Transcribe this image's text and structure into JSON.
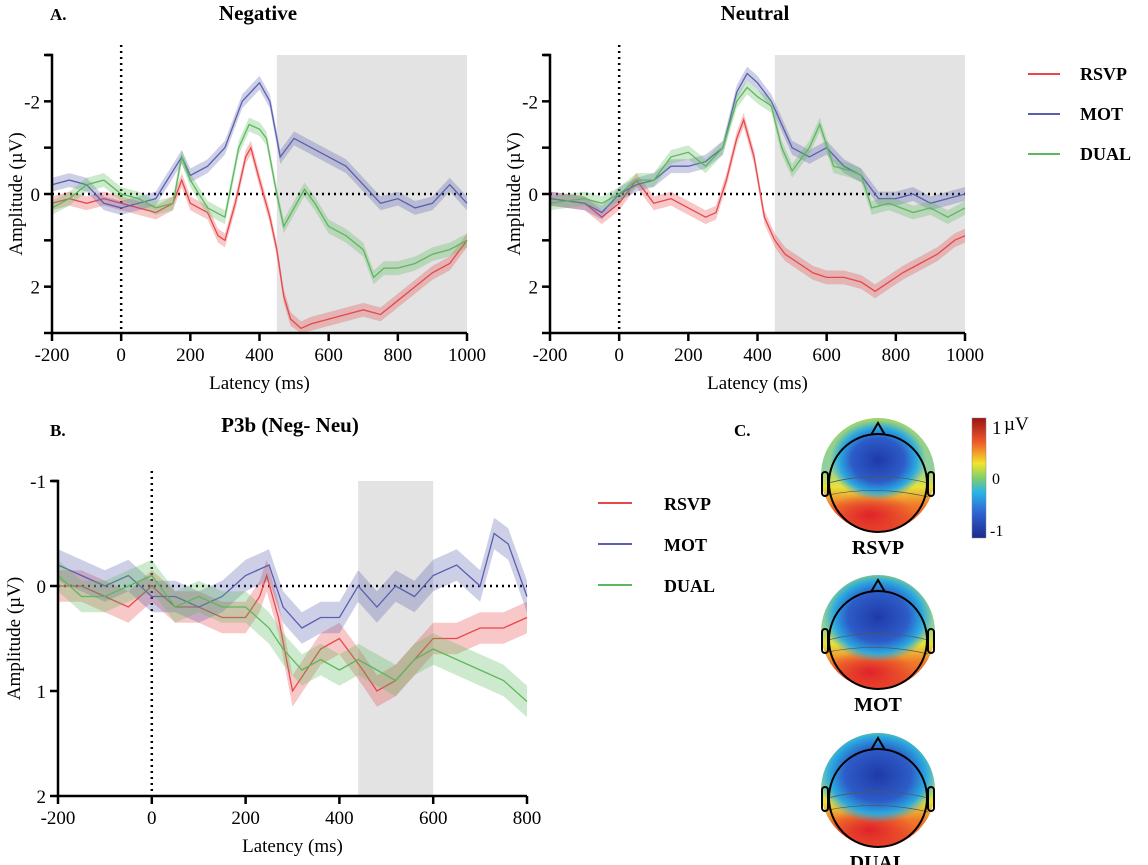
{
  "colors": {
    "RSVP": "#e8474a",
    "MOT": "#5a5fb0",
    "DUAL": "#5cb85c",
    "shade": "#e3e3e3"
  },
  "panel_labels": {
    "A": "A.",
    "B": "B.",
    "C": "C."
  },
  "legend": [
    "RSVP",
    "MOT",
    "DUAL"
  ],
  "chart_data": [
    {
      "type": "line",
      "title": "Negative",
      "xlabel": "Latency (ms)",
      "ylabel": "Amplitude (µV)",
      "y_inverted": true,
      "xlim": [
        -200,
        1000
      ],
      "ylim": [
        -3,
        3
      ],
      "xticks": [
        -200,
        0,
        200,
        400,
        600,
        800,
        1000
      ],
      "yticks": [
        -2,
        0,
        2
      ],
      "shaded_window_ms": [
        450,
        1000
      ],
      "series": [
        {
          "name": "RSVP",
          "points": [
            [
              -200,
              0.2
            ],
            [
              -150,
              0.1
            ],
            [
              -100,
              0.2
            ],
            [
              -50,
              0.1
            ],
            [
              0,
              0.2
            ],
            [
              50,
              0.3
            ],
            [
              100,
              0.4
            ],
            [
              150,
              0.2
            ],
            [
              175,
              -0.3
            ],
            [
              200,
              0.2
            ],
            [
              250,
              0.4
            ],
            [
              280,
              0.9
            ],
            [
              300,
              1.0
            ],
            [
              330,
              0.2
            ],
            [
              360,
              -0.8
            ],
            [
              375,
              -1.0
            ],
            [
              400,
              -0.3
            ],
            [
              430,
              0.5
            ],
            [
              450,
              1.2
            ],
            [
              470,
              2.2
            ],
            [
              490,
              2.7
            ],
            [
              520,
              2.9
            ],
            [
              550,
              2.8
            ],
            [
              600,
              2.7
            ],
            [
              650,
              2.6
            ],
            [
              700,
              2.5
            ],
            [
              750,
              2.6
            ],
            [
              800,
              2.3
            ],
            [
              850,
              2.0
            ],
            [
              900,
              1.7
            ],
            [
              950,
              1.5
            ],
            [
              1000,
              1.0
            ]
          ]
        },
        {
          "name": "MOT",
          "points": [
            [
              -200,
              -0.2
            ],
            [
              -150,
              -0.3
            ],
            [
              -100,
              -0.2
            ],
            [
              -50,
              0.2
            ],
            [
              0,
              0.3
            ],
            [
              50,
              0.2
            ],
            [
              100,
              0.1
            ],
            [
              150,
              -0.5
            ],
            [
              175,
              -0.8
            ],
            [
              200,
              -0.4
            ],
            [
              250,
              -0.6
            ],
            [
              300,
              -1.0
            ],
            [
              350,
              -2.0
            ],
            [
              400,
              -2.4
            ],
            [
              430,
              -2.0
            ],
            [
              460,
              -0.8
            ],
            [
              500,
              -1.2
            ],
            [
              550,
              -1.0
            ],
            [
              600,
              -0.8
            ],
            [
              650,
              -0.6
            ],
            [
              700,
              -0.2
            ],
            [
              750,
              0.2
            ],
            [
              800,
              0.1
            ],
            [
              850,
              0.3
            ],
            [
              900,
              0.2
            ],
            [
              950,
              -0.2
            ],
            [
              1000,
              0.2
            ]
          ]
        },
        {
          "name": "DUAL",
          "points": [
            [
              -200,
              0.3
            ],
            [
              -150,
              0.1
            ],
            [
              -100,
              -0.2
            ],
            [
              -50,
              -0.3
            ],
            [
              0,
              0.0
            ],
            [
              50,
              0.1
            ],
            [
              100,
              0.3
            ],
            [
              150,
              0.2
            ],
            [
              175,
              -0.8
            ],
            [
              200,
              -0.3
            ],
            [
              250,
              0.3
            ],
            [
              300,
              0.5
            ],
            [
              340,
              -1.0
            ],
            [
              370,
              -1.5
            ],
            [
              400,
              -1.4
            ],
            [
              420,
              -1.2
            ],
            [
              450,
              0.0
            ],
            [
              470,
              0.7
            ],
            [
              500,
              0.3
            ],
            [
              530,
              -0.1
            ],
            [
              560,
              0.2
            ],
            [
              600,
              0.7
            ],
            [
              650,
              0.9
            ],
            [
              700,
              1.2
            ],
            [
              730,
              1.8
            ],
            [
              760,
              1.6
            ],
            [
              800,
              1.6
            ],
            [
              850,
              1.5
            ],
            [
              900,
              1.3
            ],
            [
              950,
              1.2
            ],
            [
              1000,
              1.0
            ]
          ]
        }
      ]
    },
    {
      "type": "line",
      "title": "Neutral",
      "xlabel": "Latency (ms)",
      "ylabel": "Amplitude (µV)",
      "y_inverted": true,
      "xlim": [
        -200,
        1000
      ],
      "ylim": [
        -3,
        3
      ],
      "xticks": [
        -200,
        0,
        200,
        400,
        600,
        800,
        1000
      ],
      "yticks": [
        -2,
        0,
        2
      ],
      "shaded_window_ms": [
        450,
        1000
      ],
      "series": [
        {
          "name": "RSVP",
          "points": [
            [
              -200,
              0.1
            ],
            [
              -100,
              0.2
            ],
            [
              -50,
              0.5
            ],
            [
              0,
              0.2
            ],
            [
              50,
              -0.3
            ],
            [
              100,
              0.2
            ],
            [
              150,
              0.1
            ],
            [
              200,
              0.3
            ],
            [
              250,
              0.5
            ],
            [
              280,
              0.4
            ],
            [
              310,
              -0.3
            ],
            [
              340,
              -1.2
            ],
            [
              360,
              -1.6
            ],
            [
              390,
              -0.8
            ],
            [
              420,
              0.5
            ],
            [
              450,
              1.0
            ],
            [
              480,
              1.3
            ],
            [
              520,
              1.5
            ],
            [
              560,
              1.7
            ],
            [
              600,
              1.8
            ],
            [
              650,
              1.8
            ],
            [
              700,
              1.9
            ],
            [
              740,
              2.1
            ],
            [
              780,
              1.9
            ],
            [
              820,
              1.7
            ],
            [
              870,
              1.5
            ],
            [
              920,
              1.3
            ],
            [
              970,
              1.0
            ],
            [
              1000,
              0.9
            ]
          ]
        },
        {
          "name": "MOT",
          "points": [
            [
              -200,
              0.1
            ],
            [
              -100,
              0.2
            ],
            [
              -50,
              0.4
            ],
            [
              0,
              0
            ],
            [
              50,
              -0.2
            ],
            [
              100,
              -0.3
            ],
            [
              150,
              -0.6
            ],
            [
              200,
              -0.6
            ],
            [
              250,
              -0.7
            ],
            [
              300,
              -1.0
            ],
            [
              340,
              -2.2
            ],
            [
              370,
              -2.6
            ],
            [
              400,
              -2.4
            ],
            [
              440,
              -2.0
            ],
            [
              470,
              -1.5
            ],
            [
              500,
              -1.0
            ],
            [
              550,
              -0.8
            ],
            [
              600,
              -1.0
            ],
            [
              650,
              -0.6
            ],
            [
              700,
              -0.4
            ],
            [
              750,
              0.1
            ],
            [
              800,
              0.1
            ],
            [
              850,
              0.0
            ],
            [
              900,
              0.2
            ],
            [
              1000,
              0.0
            ]
          ]
        },
        {
          "name": "DUAL",
          "points": [
            [
              -200,
              0.2
            ],
            [
              -100,
              0.1
            ],
            [
              -50,
              0.2
            ],
            [
              0,
              0
            ],
            [
              50,
              -0.3
            ],
            [
              100,
              -0.3
            ],
            [
              150,
              -0.8
            ],
            [
              200,
              -0.9
            ],
            [
              250,
              -0.6
            ],
            [
              300,
              -1.0
            ],
            [
              340,
              -2.0
            ],
            [
              370,
              -2.3
            ],
            [
              400,
              -2.1
            ],
            [
              440,
              -1.9
            ],
            [
              470,
              -1.0
            ],
            [
              500,
              -0.5
            ],
            [
              550,
              -1.0
            ],
            [
              580,
              -1.5
            ],
            [
              620,
              -0.6
            ],
            [
              670,
              -0.5
            ],
            [
              700,
              -0.4
            ],
            [
              730,
              0.3
            ],
            [
              780,
              0.2
            ],
            [
              850,
              0.4
            ],
            [
              900,
              0.3
            ],
            [
              950,
              0.5
            ],
            [
              1000,
              0.3
            ]
          ]
        }
      ]
    },
    {
      "type": "line",
      "title": "P3b (Neg- Neu)",
      "xlabel": "Latency (ms)",
      "ylabel": "Amplitude (µV)",
      "y_inverted": true,
      "xlim": [
        -200,
        800
      ],
      "ylim": [
        -1,
        2
      ],
      "xticks": [
        -200,
        0,
        200,
        400,
        600,
        800
      ],
      "yticks": [
        -1,
        0,
        1,
        2
      ],
      "shaded_window_ms": [
        440,
        600
      ],
      "series": [
        {
          "name": "RSVP",
          "points": [
            [
              -200,
              0.0
            ],
            [
              -150,
              0.0
            ],
            [
              -100,
              0.1
            ],
            [
              -50,
              0.2
            ],
            [
              0,
              0
            ],
            [
              50,
              0.2
            ],
            [
              100,
              0.2
            ],
            [
              150,
              0.3
            ],
            [
              200,
              0.3
            ],
            [
              230,
              0.1
            ],
            [
              245,
              -0.1
            ],
            [
              270,
              0.3
            ],
            [
              300,
              1.0
            ],
            [
              330,
              0.8
            ],
            [
              360,
              0.6
            ],
            [
              400,
              0.5
            ],
            [
              450,
              0.8
            ],
            [
              480,
              1.0
            ],
            [
              520,
              0.9
            ],
            [
              560,
              0.7
            ],
            [
              600,
              0.5
            ],
            [
              650,
              0.5
            ],
            [
              700,
              0.4
            ],
            [
              750,
              0.4
            ],
            [
              800,
              0.3
            ]
          ]
        },
        {
          "name": "MOT",
          "points": [
            [
              -200,
              -0.2
            ],
            [
              -150,
              -0.1
            ],
            [
              -100,
              0
            ],
            [
              -50,
              -0.1
            ],
            [
              0,
              0.1
            ],
            [
              50,
              0.1
            ],
            [
              100,
              0.2
            ],
            [
              150,
              0.1
            ],
            [
              200,
              -0.1
            ],
            [
              250,
              -0.2
            ],
            [
              280,
              0.2
            ],
            [
              320,
              0.4
            ],
            [
              360,
              0.3
            ],
            [
              400,
              0.3
            ],
            [
              440,
              0.0
            ],
            [
              480,
              0.2
            ],
            [
              520,
              0.0
            ],
            [
              560,
              0.1
            ],
            [
              600,
              -0.1
            ],
            [
              650,
              -0.2
            ],
            [
              700,
              0.0
            ],
            [
              730,
              -0.5
            ],
            [
              760,
              -0.4
            ],
            [
              800,
              0.1
            ]
          ]
        },
        {
          "name": "DUAL",
          "points": [
            [
              -200,
              -0.1
            ],
            [
              -150,
              0.1
            ],
            [
              -100,
              0.1
            ],
            [
              -50,
              0.0
            ],
            [
              0,
              -0.1
            ],
            [
              50,
              0.2
            ],
            [
              100,
              0.1
            ],
            [
              150,
              0.2
            ],
            [
              200,
              0.2
            ],
            [
              250,
              0.4
            ],
            [
              280,
              0.6
            ],
            [
              320,
              0.8
            ],
            [
              360,
              0.7
            ],
            [
              400,
              0.8
            ],
            [
              440,
              0.7
            ],
            [
              480,
              0.8
            ],
            [
              520,
              0.9
            ],
            [
              560,
              0.7
            ],
            [
              600,
              0.6
            ],
            [
              650,
              0.7
            ],
            [
              700,
              0.8
            ],
            [
              750,
              0.9
            ],
            [
              800,
              1.1
            ]
          ]
        }
      ]
    }
  ],
  "topomaps": {
    "labels": [
      "RSVP",
      "MOT",
      "DUAL"
    ],
    "colorbar": {
      "max_label": "1",
      "unit": "µV",
      "mid_label": "0",
      "min_label": "-1"
    }
  }
}
